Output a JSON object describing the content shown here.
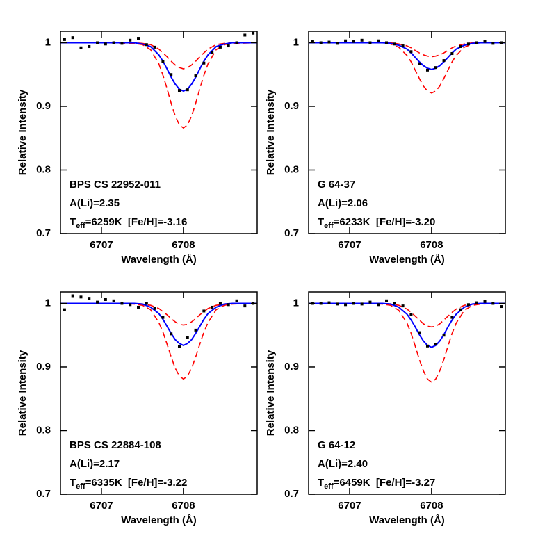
{
  "chart_data": [
    {
      "type": "line",
      "xlabel": "Wavelength (Å)",
      "ylabel": "Relative Intensity",
      "xlim": [
        6706.5,
        6708.9
      ],
      "ylim": [
        0.7,
        1.018
      ],
      "xticks": [
        6707,
        6708
      ],
      "yticks": [
        0.7,
        0.8,
        0.9,
        1
      ],
      "annotations": [
        "BPS CS 22952-011",
        "A(Li)=2.35",
        [
          "T",
          "eff",
          "=6259K  [Fe/H]=-3.16"
        ]
      ],
      "x": [
        6706.5,
        6707.0,
        6707.4,
        6707.5,
        6707.6,
        6707.7,
        6707.75,
        6707.8,
        6707.85,
        6707.9,
        6707.95,
        6708.0,
        6708.05,
        6708.1,
        6708.15,
        6708.2,
        6708.25,
        6708.3,
        6708.4,
        6708.5,
        6708.6,
        6708.9
      ],
      "series": [
        {
          "color": "#ff0000",
          "dash": true,
          "values": [
            1,
            1,
            1,
            0.999,
            0.997,
            0.99,
            0.984,
            0.978,
            0.971,
            0.965,
            0.961,
            0.959,
            0.961,
            0.965,
            0.971,
            0.978,
            0.984,
            0.99,
            0.997,
            0.999,
            1,
            1
          ]
        },
        {
          "color": "#ff0000",
          "dash": true,
          "values": [
            1,
            1,
            0.999,
            0.997,
            0.989,
            0.967,
            0.949,
            0.928,
            0.905,
            0.885,
            0.871,
            0.866,
            0.871,
            0.885,
            0.905,
            0.928,
            0.949,
            0.967,
            0.989,
            0.997,
            0.999,
            1
          ]
        },
        {
          "color": "#0000ff",
          "dash": false,
          "values": [
            1,
            1,
            1,
            0.998,
            0.994,
            0.981,
            0.971,
            0.959,
            0.946,
            0.935,
            0.927,
            0.924,
            0.927,
            0.935,
            0.946,
            0.959,
            0.971,
            0.981,
            0.994,
            0.998,
            1,
            1
          ]
        }
      ],
      "observed": {
        "color": "#000000",
        "x": [
          6706.55,
          6706.65,
          6706.75,
          6706.85,
          6706.95,
          6707.05,
          6707.15,
          6707.25,
          6707.35,
          6707.45,
          6707.55,
          6707.65,
          6707.75,
          6707.85,
          6707.95,
          6708.05,
          6708.15,
          6708.25,
          6708.35,
          6708.45,
          6708.55,
          6708.65,
          6708.75,
          6708.85
        ],
        "values": [
          1.005,
          1.008,
          0.992,
          0.994,
          1.0,
          0.998,
          1.0,
          0.999,
          1.004,
          1.007,
          0.997,
          0.993,
          0.97,
          0.95,
          0.925,
          0.926,
          0.948,
          0.968,
          0.985,
          0.993,
          0.995,
          1.0,
          1.012,
          1.015
        ]
      }
    },
    {
      "type": "line",
      "xlabel": "Wavelength (Å)",
      "ylabel": "Relative Intensity",
      "xlim": [
        6706.5,
        6708.9
      ],
      "ylim": [
        0.7,
        1.018
      ],
      "xticks": [
        6707,
        6708
      ],
      "yticks": [
        0.7,
        0.8,
        0.9,
        1
      ],
      "annotations": [
        "G 64-37",
        "A(Li)=2.06",
        [
          "T",
          "eff",
          "=6233K  [Fe/H]=-3.20"
        ]
      ],
      "x": [
        6706.5,
        6707.0,
        6707.4,
        6707.5,
        6707.6,
        6707.7,
        6707.75,
        6707.8,
        6707.85,
        6707.9,
        6707.95,
        6708.0,
        6708.05,
        6708.1,
        6708.15,
        6708.2,
        6708.25,
        6708.3,
        6708.4,
        6708.5,
        6708.6,
        6708.9
      ],
      "series": [
        {
          "color": "#ff0000",
          "dash": true,
          "values": [
            1,
            1,
            1,
            1,
            0.998,
            0.995,
            0.992,
            0.988,
            0.984,
            0.981,
            0.979,
            0.978,
            0.979,
            0.981,
            0.984,
            0.988,
            0.992,
            0.995,
            0.998,
            1,
            1,
            1
          ]
        },
        {
          "color": "#ff0000",
          "dash": true,
          "values": [
            1,
            1,
            1,
            0.998,
            0.993,
            0.98,
            0.97,
            0.957,
            0.944,
            0.932,
            0.924,
            0.921,
            0.924,
            0.932,
            0.944,
            0.957,
            0.97,
            0.98,
            0.993,
            0.998,
            1,
            1
          ]
        },
        {
          "color": "#0000ff",
          "dash": false,
          "values": [
            1,
            1,
            1,
            0.999,
            0.996,
            0.99,
            0.984,
            0.977,
            0.97,
            0.964,
            0.96,
            0.958,
            0.96,
            0.964,
            0.97,
            0.977,
            0.984,
            0.99,
            0.996,
            0.999,
            1,
            1
          ]
        }
      ],
      "observed": {
        "color": "#000000",
        "x": [
          6706.55,
          6706.65,
          6706.75,
          6706.85,
          6706.95,
          6707.05,
          6707.15,
          6707.25,
          6707.35,
          6707.45,
          6707.55,
          6707.65,
          6707.75,
          6707.85,
          6707.95,
          6708.05,
          6708.15,
          6708.25,
          6708.35,
          6708.45,
          6708.55,
          6708.65,
          6708.75,
          6708.85
        ],
        "values": [
          1.002,
          1.0,
          1.001,
          0.999,
          1.003,
          1.002,
          1.004,
          1.0,
          1.003,
          1.0,
          0.998,
          0.995,
          0.986,
          0.967,
          0.957,
          0.961,
          0.972,
          0.983,
          0.994,
          0.998,
          1.0,
          1.002,
          0.999,
          1.0
        ]
      }
    },
    {
      "type": "line",
      "xlabel": "Wavelength (Å)",
      "ylabel": "Relative Intensity",
      "xlim": [
        6706.5,
        6708.9
      ],
      "ylim": [
        0.7,
        1.018
      ],
      "xticks": [
        6707,
        6708
      ],
      "yticks": [
        0.7,
        0.8,
        0.9,
        1
      ],
      "annotations": [
        "BPS CS 22884-108",
        "A(Li)=2.17",
        [
          "T",
          "eff",
          "=6335K  [Fe/H]=-3.22"
        ]
      ],
      "x": [
        6706.5,
        6707.0,
        6707.4,
        6707.5,
        6707.6,
        6707.7,
        6707.75,
        6707.8,
        6707.85,
        6707.9,
        6707.95,
        6708.0,
        6708.05,
        6708.1,
        6708.15,
        6708.2,
        6708.25,
        6708.3,
        6708.4,
        6708.5,
        6708.6,
        6708.9
      ],
      "series": [
        {
          "color": "#ff0000",
          "dash": true,
          "values": [
            1,
            1,
            1,
            0.999,
            0.997,
            0.992,
            0.987,
            0.982,
            0.976,
            0.971,
            0.967,
            0.966,
            0.967,
            0.971,
            0.976,
            0.982,
            0.987,
            0.992,
            0.997,
            0.999,
            1,
            1
          ]
        },
        {
          "color": "#ff0000",
          "dash": true,
          "values": [
            1,
            1,
            0.999,
            0.997,
            0.99,
            0.97,
            0.955,
            0.936,
            0.916,
            0.898,
            0.886,
            0.881,
            0.886,
            0.898,
            0.916,
            0.936,
            0.955,
            0.97,
            0.99,
            0.997,
            0.999,
            1
          ]
        },
        {
          "color": "#0000ff",
          "dash": false,
          "values": [
            1,
            1,
            1,
            0.999,
            0.994,
            0.984,
            0.975,
            0.964,
            0.953,
            0.943,
            0.937,
            0.934,
            0.937,
            0.943,
            0.953,
            0.964,
            0.975,
            0.984,
            0.994,
            0.999,
            1,
            1
          ]
        }
      ],
      "observed": {
        "color": "#000000",
        "x": [
          6706.55,
          6706.65,
          6706.75,
          6706.85,
          6706.95,
          6707.05,
          6707.15,
          6707.25,
          6707.35,
          6707.45,
          6707.55,
          6707.65,
          6707.75,
          6707.85,
          6707.95,
          6708.05,
          6708.15,
          6708.25,
          6708.35,
          6708.45,
          6708.55,
          6708.65,
          6708.75,
          6708.85
        ],
        "values": [
          0.99,
          1.012,
          1.01,
          1.008,
          1.002,
          1.006,
          1.004,
          1.0,
          0.998,
          0.994,
          1.0,
          0.992,
          0.978,
          0.952,
          0.932,
          0.946,
          0.958,
          0.988,
          0.994,
          1.0,
          0.998,
          1.004,
          0.996,
          1.0
        ]
      }
    },
    {
      "type": "line",
      "xlabel": "Wavelength (Å)",
      "ylabel": "Relative Intensity",
      "xlim": [
        6706.5,
        6708.9
      ],
      "ylim": [
        0.7,
        1.018
      ],
      "xticks": [
        6707,
        6708
      ],
      "yticks": [
        0.7,
        0.8,
        0.9,
        1
      ],
      "annotations": [
        "G 64-12",
        "A(Li)=2.40",
        [
          "T",
          "eff",
          "=6459K  [Fe/H]=-3.27"
        ]
      ],
      "x": [
        6706.5,
        6707.0,
        6707.4,
        6707.5,
        6707.6,
        6707.7,
        6707.75,
        6707.8,
        6707.85,
        6707.9,
        6707.95,
        6708.0,
        6708.05,
        6708.1,
        6708.15,
        6708.2,
        6708.25,
        6708.3,
        6708.4,
        6708.5,
        6708.6,
        6708.9
      ],
      "series": [
        {
          "color": "#ff0000",
          "dash": true,
          "values": [
            1,
            1,
            1,
            0.999,
            0.997,
            0.991,
            0.986,
            0.98,
            0.974,
            0.968,
            0.964,
            0.963,
            0.964,
            0.968,
            0.974,
            0.98,
            0.986,
            0.991,
            0.997,
            0.999,
            1,
            1
          ]
        },
        {
          "color": "#ff0000",
          "dash": true,
          "values": [
            1,
            1,
            0.999,
            0.997,
            0.989,
            0.969,
            0.953,
            0.933,
            0.912,
            0.894,
            0.881,
            0.876,
            0.881,
            0.894,
            0.912,
            0.933,
            0.953,
            0.969,
            0.989,
            0.997,
            0.999,
            1
          ]
        },
        {
          "color": "#0000ff",
          "dash": false,
          "values": [
            1,
            1,
            1,
            0.999,
            0.994,
            0.983,
            0.974,
            0.963,
            0.951,
            0.941,
            0.934,
            0.931,
            0.934,
            0.941,
            0.951,
            0.963,
            0.974,
            0.983,
            0.994,
            0.999,
            1,
            1
          ]
        }
      ],
      "observed": {
        "color": "#000000",
        "x": [
          6706.55,
          6706.65,
          6706.75,
          6706.85,
          6706.95,
          6707.05,
          6707.15,
          6707.25,
          6707.35,
          6707.45,
          6707.55,
          6707.65,
          6707.75,
          6707.85,
          6707.95,
          6708.05,
          6708.15,
          6708.25,
          6708.35,
          6708.45,
          6708.55,
          6708.65,
          6708.75,
          6708.85
        ],
        "values": [
          1.0,
          1.0,
          1.001,
          0.999,
          0.998,
          1.0,
          0.999,
          1.002,
          0.998,
          1.004,
          1.0,
          0.996,
          0.982,
          0.954,
          0.933,
          0.936,
          0.95,
          0.978,
          0.99,
          0.998,
          1.001,
          1.003,
          1.0,
          0.995
        ]
      }
    }
  ]
}
